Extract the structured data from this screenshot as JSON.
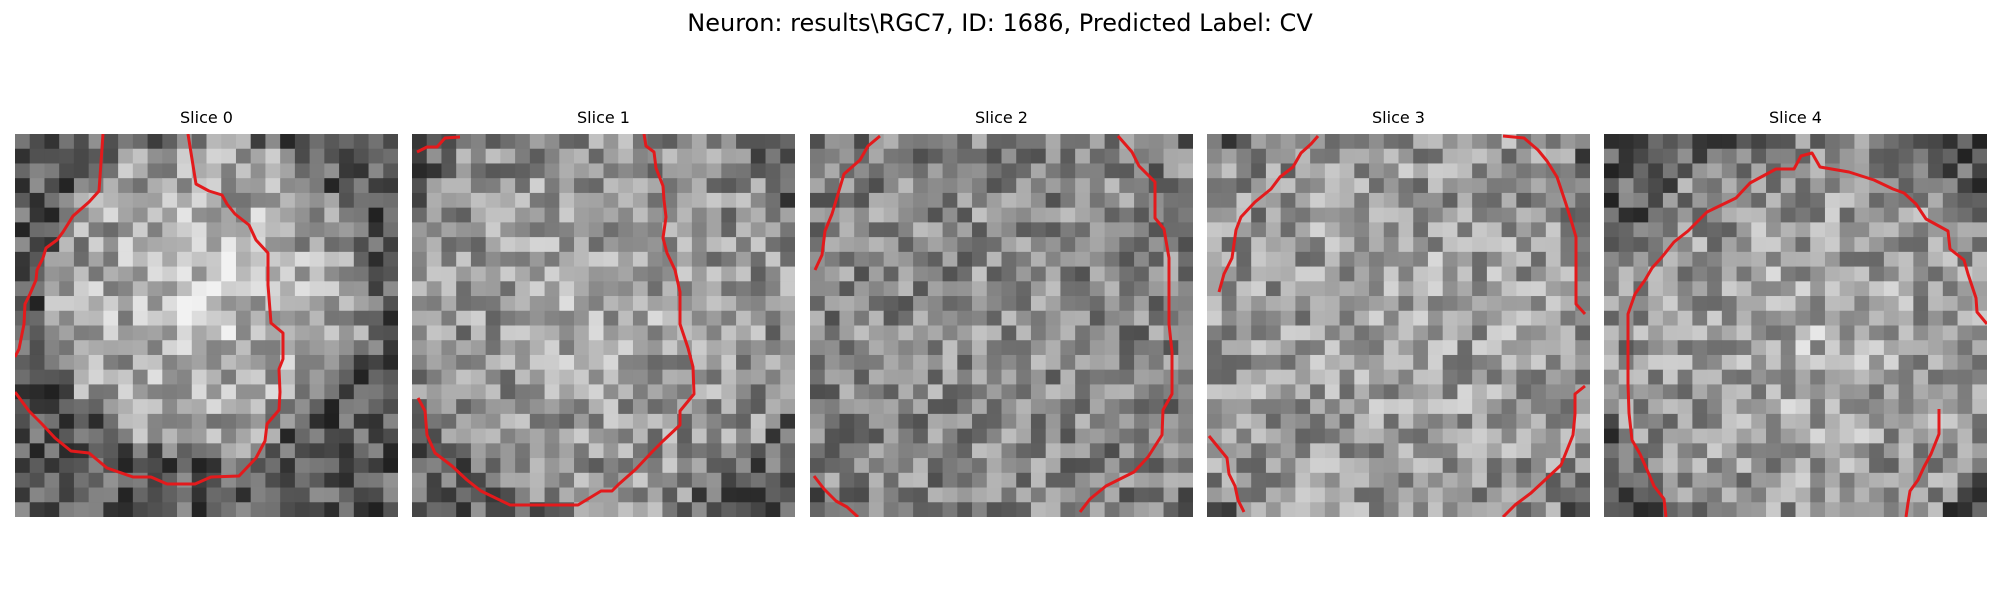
{
  "figure": {
    "title": "Neuron: results\\RGC7, ID: 1686, Predicted Label: CV"
  },
  "colors": {
    "contour": "#e31a1c",
    "background": "#ffffff",
    "text": "#000000"
  },
  "image": {
    "colormap": "grayscale",
    "grid_size": 26
  },
  "panels": [
    {
      "title": "Slice 0"
    },
    {
      "title": "Slice 1"
    },
    {
      "title": "Slice 2"
    },
    {
      "title": "Slice 3"
    },
    {
      "title": "Slice 4"
    }
  ]
}
